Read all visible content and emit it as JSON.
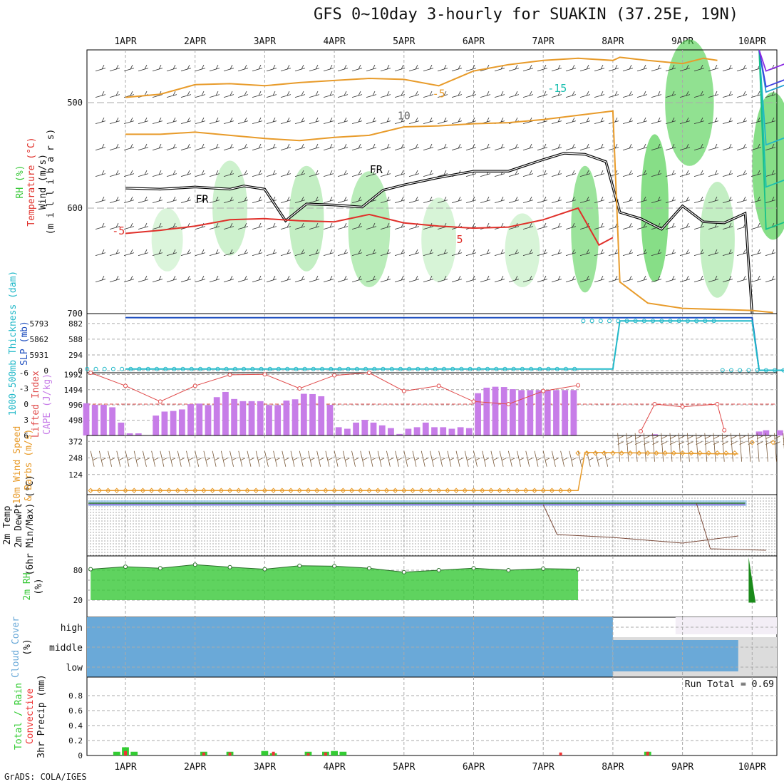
{
  "title": "GFS 0~10day 3-hourly for SUAKIN (37.25E, 19N)",
  "credit": "GrADS: COLA/IGES",
  "run_total_text": "Run Total = 0.69",
  "colors": {
    "rh_green": "#37c837",
    "temperature_orange": "#e89b2a",
    "temperature_red": "#e0302a",
    "cape_purple": "#c77de8",
    "cloud_blue": "#6aa9d8",
    "cloud_gray": "#dcdcdc",
    "precip_green": "#33cc33",
    "precip_red": "#ee3333",
    "slp_blue": "#1f4fbf",
    "thickness_cyan": "#20b8c8",
    "wind_speed_orange": "#e89b2a",
    "dewpoint_purple": "#8a6cdc",
    "lifted_index_red": "#e04a4a"
  },
  "chart_data": [
    {
      "panel": "upper_air",
      "type": "area",
      "ylabels": [
        "RH (%)",
        "Temperature (°C)",
        "Wind (m/s)",
        "(m i l l i b a r s)"
      ],
      "y_ticks": [
        500,
        600,
        700
      ],
      "ylim": [
        700,
        450
      ],
      "x_ticks": [
        "1APR",
        "2APR",
        "3APR",
        "4APR",
        "5APR",
        "6APR",
        "7APR",
        "8APR",
        "9APR",
        "10APR"
      ],
      "contour_labels": [
        "-15",
        "-5",
        "10",
        "FR",
        "FR",
        "-5",
        "5"
      ],
      "series": [
        {
          "name": "freezing level",
          "label": "FR",
          "x": [
            0,
            0.5,
            1,
            1.5,
            1.7,
            2,
            2.3,
            2.6,
            3,
            3.4,
            3.7,
            4,
            4.5,
            5,
            5.5,
            6,
            6.3,
            6.6,
            6.9,
            7.1,
            7.4,
            7.7,
            8,
            8.3,
            8.6,
            8.9,
            9.0
          ],
          "y": [
            581,
            582,
            580,
            582,
            579,
            582,
            612,
            596,
            597,
            599,
            583,
            578,
            571,
            565,
            565,
            554,
            548,
            549,
            556,
            604,
            610,
            620,
            598,
            613,
            614,
            605,
            700
          ]
        },
        {
          "name": "-5C isotherm",
          "label": "-5",
          "x": [
            0,
            0.5,
            1,
            1.5,
            2,
            2.5,
            3,
            3.5,
            4,
            4.5,
            5,
            5.5,
            6,
            6.5,
            6.8,
            7.0
          ],
          "y": [
            624,
            621,
            617,
            611,
            610,
            612,
            613,
            606,
            614,
            617,
            619,
            618,
            611,
            600,
            635,
            628
          ]
        },
        {
          "name": "-5C upper",
          "label": "-5",
          "x": [
            0,
            0.5,
            1,
            1.5,
            2,
            2.5,
            3,
            3.5,
            4,
            4.5,
            5,
            5.5,
            6,
            6.5,
            7.0,
            7.1,
            7.5,
            8,
            8.5,
            9.0,
            9.3
          ],
          "y": [
            530,
            530,
            528,
            531,
            534,
            536,
            533,
            531,
            523,
            522,
            520,
            519,
            516,
            512,
            508,
            670,
            690,
            695,
            696,
            697,
            699
          ]
        },
        {
          "name": "-15C isotherm",
          "label": "-15",
          "x": [
            0,
            0.5,
            1,
            1.5,
            2,
            2.5,
            3,
            3.5,
            4,
            4.5,
            5,
            5.5,
            6,
            6.5,
            7.0,
            7.1,
            7.5,
            8,
            8.3,
            8.5
          ],
          "y": [
            495,
            492,
            483,
            482,
            484,
            481,
            479,
            477,
            478,
            484,
            470,
            464,
            460,
            458,
            460,
            457,
            460,
            463,
            458,
            460
          ]
        }
      ]
    },
    {
      "panel": "slp_thickness",
      "type": "line",
      "ylabels": [
        "1000-500mb Thickness (dam)",
        "SLP (mb)"
      ],
      "left_ticks": [
        "5793",
        "5862",
        "5931",
        "0"
      ],
      "right_ticks": [
        882,
        588,
        294,
        0
      ],
      "series": [
        {
          "name": "SLP",
          "x": [
            0,
            0.4,
            7.0,
            9.0,
            9.1,
            10.3
          ],
          "y": [
            992,
            990,
            990,
            990,
            6,
            5
          ]
        },
        {
          "name": "1000-500mb thickness",
          "x": [
            0,
            7.0,
            7.1,
            9.0,
            9.1,
            10.3
          ],
          "y": [
            30,
            30,
            930,
            930,
            6,
            6
          ]
        }
      ]
    },
    {
      "panel": "cape_lifted_index",
      "type": "bar",
      "ylabels": [
        "Lifted Index",
        "CAPE (J/kg)"
      ],
      "left_ticks": [
        -6,
        -3,
        0,
        3,
        6
      ],
      "right_ticks": [
        1992,
        1494,
        996,
        498
      ],
      "cape_x": [
        0,
        0.125,
        0.25,
        0.375,
        0.5,
        0.625,
        0.75,
        0.875,
        1.0,
        1.125,
        1.25,
        1.375,
        1.5,
        1.625,
        1.75,
        1.875,
        2.0,
        2.125,
        2.25,
        2.375,
        2.5,
        2.625,
        2.75,
        2.875,
        3.0,
        3.125,
        3.25,
        3.375,
        3.5,
        3.625,
        3.75,
        3.875,
        4.0,
        4.125,
        4.25,
        4.375,
        4.5,
        4.625,
        4.75,
        4.875,
        5.0,
        5.125,
        5.25,
        5.375,
        5.5,
        5.625,
        5.75,
        5.875,
        6.0,
        6.125,
        6.25,
        6.375,
        6.5,
        6.625,
        6.75,
        6.875,
        7.0
      ],
      "cape_values": [
        1050,
        1000,
        1000,
        920,
        420,
        70,
        70,
        0,
        650,
        780,
        800,
        850,
        1020,
        1040,
        990,
        1250,
        1420,
        1190,
        1120,
        1120,
        1120,
        990,
        990,
        1140,
        1180,
        1360,
        1350,
        1280,
        1000,
        270,
        220,
        420,
        510,
        420,
        330,
        240,
        50,
        220,
        270,
        420,
        270,
        270,
        220,
        270,
        240,
        1380,
        1560,
        1590,
        1580,
        1510,
        1480,
        1480,
        1480,
        1480,
        1480,
        1480,
        1480
      ],
      "cape_tail_x": [
        7.3,
        7.4,
        7.6,
        9.1,
        9.2,
        9.4,
        9.6,
        9.8,
        10.0,
        10.2
      ],
      "cape_tail_values": [
        10,
        15,
        40,
        130,
        170,
        170,
        170,
        170,
        170,
        170
      ],
      "lifted_index": {
        "x": [
          0,
          0.5,
          1.0,
          1.5,
          2.0,
          2.5,
          3.0,
          3.5,
          4.0,
          4.5,
          5.0,
          5.5,
          6.0,
          6.5,
          7.0,
          7.9,
          8.1,
          8.5,
          9.0,
          9.1
        ],
        "y": [
          -6.0,
          -3.5,
          -0.5,
          -3.5,
          -5.6,
          -5.7,
          -3.0,
          -5.5,
          -6.0,
          -2.5,
          -3.5,
          -0.5,
          0.0,
          -2.5,
          -3.6,
          5.2,
          0.0,
          0.5,
          0.0,
          5.0
        ]
      }
    },
    {
      "panel": "wind_10m",
      "type": "line",
      "ylabels": [
        "10m Wind Speed",
        "& Barbs (m/s)"
      ],
      "right_ticks": [
        372,
        248,
        124
      ],
      "series": [
        {
          "name": "10m wind speed",
          "x": [
            0,
            7.0,
            7.1,
            9.3
          ],
          "y": [
            4,
            4,
            290,
            278
          ]
        },
        {
          "name": "10m wind speed tail",
          "x": [
            9.5,
            9.8,
            10.2
          ],
          "y": [
            364,
            364,
            364
          ]
        }
      ]
    },
    {
      "panel": "temperature_2m",
      "type": "line",
      "ylabels": [
        "2m Temp",
        "2m DewPt",
        "(6hr Min/Max) (°C)"
      ]
    },
    {
      "panel": "rh_2m",
      "type": "area",
      "ylabels": [
        "2m RH",
        "(%)"
      ],
      "y_ticks": [
        80,
        20
      ],
      "series": [
        {
          "name": "2m RH",
          "x": [
            0,
            0.5,
            1.0,
            1.5,
            2.0,
            2.5,
            3.0,
            3.5,
            4.0,
            4.5,
            5.0,
            5.5,
            6.0,
            6.5,
            7.0
          ],
          "y": [
            82,
            87,
            84,
            91,
            86,
            82,
            89,
            88,
            84,
            76,
            80,
            84,
            80,
            83,
            82
          ]
        }
      ]
    },
    {
      "panel": "cloud_cover",
      "type": "area",
      "ylabels": [
        "Cloud Cover",
        "(%)"
      ],
      "levels": [
        "high",
        "middle",
        "low"
      ]
    },
    {
      "panel": "precip",
      "type": "bar",
      "ylabels": [
        "Total / Rain",
        "Convective",
        "3hr Precip (mm)"
      ],
      "y_ticks": [
        0.8,
        0.6,
        0.4,
        0.2,
        0
      ],
      "ylim": [
        0,
        1.0
      ],
      "x_ticks": [
        "1APR",
        "2APR",
        "3APR",
        "4APR",
        "5APR",
        "6APR",
        "7APR",
        "8APR",
        "9APR",
        "10APR"
      ],
      "total_x": [
        -0.125,
        0.0,
        0.125,
        1.125,
        1.5,
        2.0,
        2.125,
        2.625,
        2.875,
        3.0,
        3.125,
        7.5
      ],
      "total_values": [
        0.05,
        0.11,
        0.05,
        0.05,
        0.05,
        0.06,
        0.03,
        0.05,
        0.05,
        0.06,
        0.05,
        0.05
      ],
      "convective_x": [
        0.0,
        1.125,
        1.5,
        2.125,
        2.625,
        2.875,
        6.25,
        7.5
      ],
      "convective_values": [
        0.06,
        0.04,
        0.04,
        0.05,
        0.03,
        0.04,
        0.04,
        0.05
      ]
    }
  ]
}
